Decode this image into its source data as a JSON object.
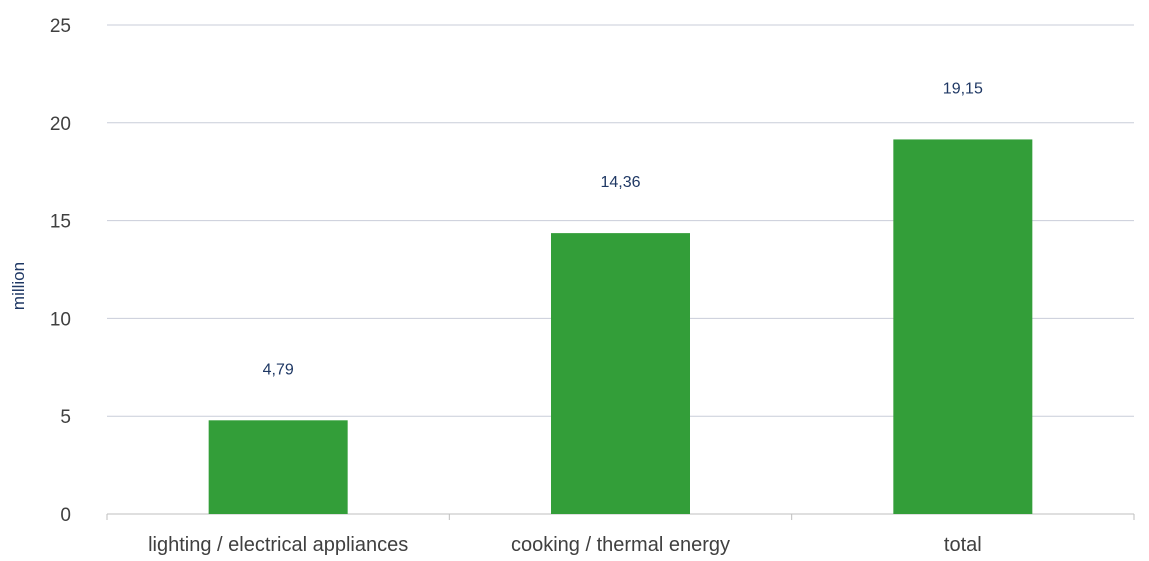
{
  "colors": {
    "bar": "#339e39",
    "gridline": "#c9cdd9",
    "axis": "#bfbfbf",
    "tick_text": "#404040",
    "data_label": "#1f3864",
    "axis_title": "#1f3864"
  },
  "chart_data": {
    "type": "bar",
    "title": "",
    "xlabel": "",
    "ylabel": "million",
    "categories": [
      "lighting / electrical appliances",
      "cooking / thermal energy",
      "total"
    ],
    "values": [
      4.79,
      14.36,
      19.15
    ],
    "data_labels": [
      "4,79",
      "14,36",
      "19,15"
    ],
    "ylim": [
      0,
      25
    ],
    "yticks": [
      0,
      5,
      10,
      15,
      20,
      25
    ],
    "ytick_labels": [
      "0",
      "5",
      "10",
      "15",
      "20",
      "25"
    ],
    "grid": true,
    "legend": "none"
  }
}
